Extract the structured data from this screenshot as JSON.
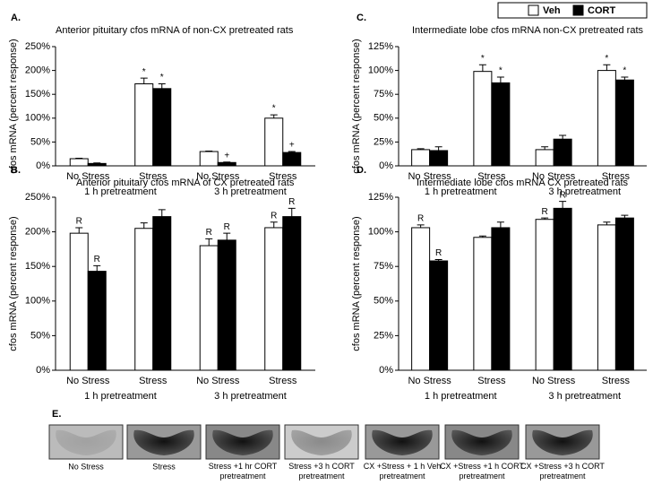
{
  "chart_data": [
    {
      "type": "bar",
      "panel": "A.",
      "title": "Anterior pituitary cfos mRNA of non-CX pretreated rats",
      "y_label": "cfos mRNA (percent response)",
      "categories": [
        "No Stress",
        "Stress",
        "No Stress",
        "Stress"
      ],
      "groups": [
        "1 h pretreatment",
        "3 h pretreatment"
      ],
      "series": [
        {
          "name": "Veh",
          "color": "#ffffff",
          "values": [
            15,
            172,
            30,
            100
          ],
          "errors": [
            1,
            12,
            1,
            7
          ],
          "markers": [
            null,
            "*",
            null,
            "*"
          ]
        },
        {
          "name": "CORT",
          "color": "#000000",
          "values": [
            5,
            162,
            7,
            28
          ],
          "errors": [
            1,
            10,
            1,
            2
          ],
          "markers": [
            null,
            "*",
            "+",
            "+"
          ]
        }
      ],
      "ylim": [
        0,
        250
      ],
      "yticks": [
        {
          "value": 0,
          "label": "0%"
        },
        {
          "value": 50,
          "label": "50%"
        },
        {
          "value": 100,
          "label": "100%"
        },
        {
          "value": 150,
          "label": "150%"
        },
        {
          "value": 200,
          "label": "200%"
        },
        {
          "value": 250,
          "label": "250%"
        }
      ]
    },
    {
      "type": "bar",
      "panel": "C.",
      "title": "Intermediate lobe cfos mRNA non-CX pretreated rats",
      "y_label": "cfos mRNA (percent response)",
      "categories": [
        "No Stress",
        "Stress",
        "No Stress",
        "Stress"
      ],
      "groups": [
        "1 h pretreatment",
        "3 h pretreatment"
      ],
      "series": [
        {
          "name": "Veh",
          "color": "#ffffff",
          "values": [
            17,
            99,
            17,
            100
          ],
          "errors": [
            1,
            7,
            3,
            6
          ],
          "markers": [
            null,
            "*",
            null,
            "*"
          ]
        },
        {
          "name": "CORT",
          "color": "#000000",
          "values": [
            16,
            87,
            28,
            90
          ],
          "errors": [
            4,
            6,
            4,
            3
          ],
          "markers": [
            null,
            "*",
            null,
            "*"
          ]
        }
      ],
      "ylim": [
        0,
        125
      ],
      "yticks": [
        {
          "value": 0,
          "label": "0%"
        },
        {
          "value": 25,
          "label": "25%"
        },
        {
          "value": 50,
          "label": "50%"
        },
        {
          "value": 75,
          "label": "75%"
        },
        {
          "value": 100,
          "label": "100%"
        },
        {
          "value": 125,
          "label": "125%"
        }
      ]
    },
    {
      "type": "bar",
      "panel": "B.",
      "title": "Anterior pituitary cfos mRNA of CX pretreated rats",
      "y_label": "cfos mRNA (percent response)",
      "categories": [
        "No Stress",
        "Stress",
        "No Stress",
        "Stress"
      ],
      "groups": [
        "1 h pretreatment",
        "3 h pretreatment"
      ],
      "series": [
        {
          "name": "Veh",
          "color": "#ffffff",
          "values": [
            198,
            205,
            180,
            206
          ],
          "errors": [
            8,
            8,
            10,
            8
          ],
          "markers": [
            "R",
            null,
            "R",
            "R"
          ]
        },
        {
          "name": "CORT",
          "color": "#000000",
          "values": [
            143,
            222,
            188,
            222
          ],
          "errors": [
            8,
            10,
            10,
            12
          ],
          "markers": [
            "R",
            null,
            "R",
            "R"
          ]
        }
      ],
      "ylim": [
        0,
        250
      ],
      "yticks": [
        {
          "value": 0,
          "label": "0%"
        },
        {
          "value": 50,
          "label": "50%"
        },
        {
          "value": 100,
          "label": "100%"
        },
        {
          "value": 150,
          "label": "150%"
        },
        {
          "value": 200,
          "label": "200%"
        },
        {
          "value": 250,
          "label": "250%"
        }
      ]
    },
    {
      "type": "bar",
      "panel": "D.",
      "title": "Intermediate lobe cfos mRNA CX pretreated rats",
      "y_label": "cfos mRNA (percent response)",
      "categories": [
        "No Stress",
        "Stress",
        "No Stress",
        "Stress"
      ],
      "groups": [
        "1 h pretreatment",
        "3 h pretreatment"
      ],
      "series": [
        {
          "name": "Veh",
          "color": "#ffffff",
          "values": [
            103,
            96,
            109,
            105
          ],
          "errors": [
            2,
            1,
            1,
            2
          ],
          "markers": [
            "R",
            null,
            "R",
            null
          ]
        },
        {
          "name": "CORT",
          "color": "#000000",
          "values": [
            79,
            103,
            117,
            110
          ],
          "errors": [
            1,
            4,
            5,
            2
          ],
          "markers": [
            "R",
            null,
            "R",
            null
          ]
        }
      ],
      "ylim": [
        0,
        125
      ],
      "yticks": [
        {
          "value": 0,
          "label": "0%"
        },
        {
          "value": 25,
          "label": "25%"
        },
        {
          "value": 50,
          "label": "50%"
        },
        {
          "value": 75,
          "label": "75%"
        },
        {
          "value": 100,
          "label": "100%"
        },
        {
          "value": 125,
          "label": "125%"
        }
      ]
    }
  ],
  "panel_e": {
    "label": "E.",
    "captions": [
      "No Stress",
      "Stress",
      "Stress +1 hr CORT pretreatment",
      "Stress +3 h CORT pretreatment",
      "CX +Stress + 1 h Veh pretreatment",
      "CX +Stress +1 h CORT pretreatment",
      "CX +Stress +3 h CORT pretreatment"
    ]
  }
}
